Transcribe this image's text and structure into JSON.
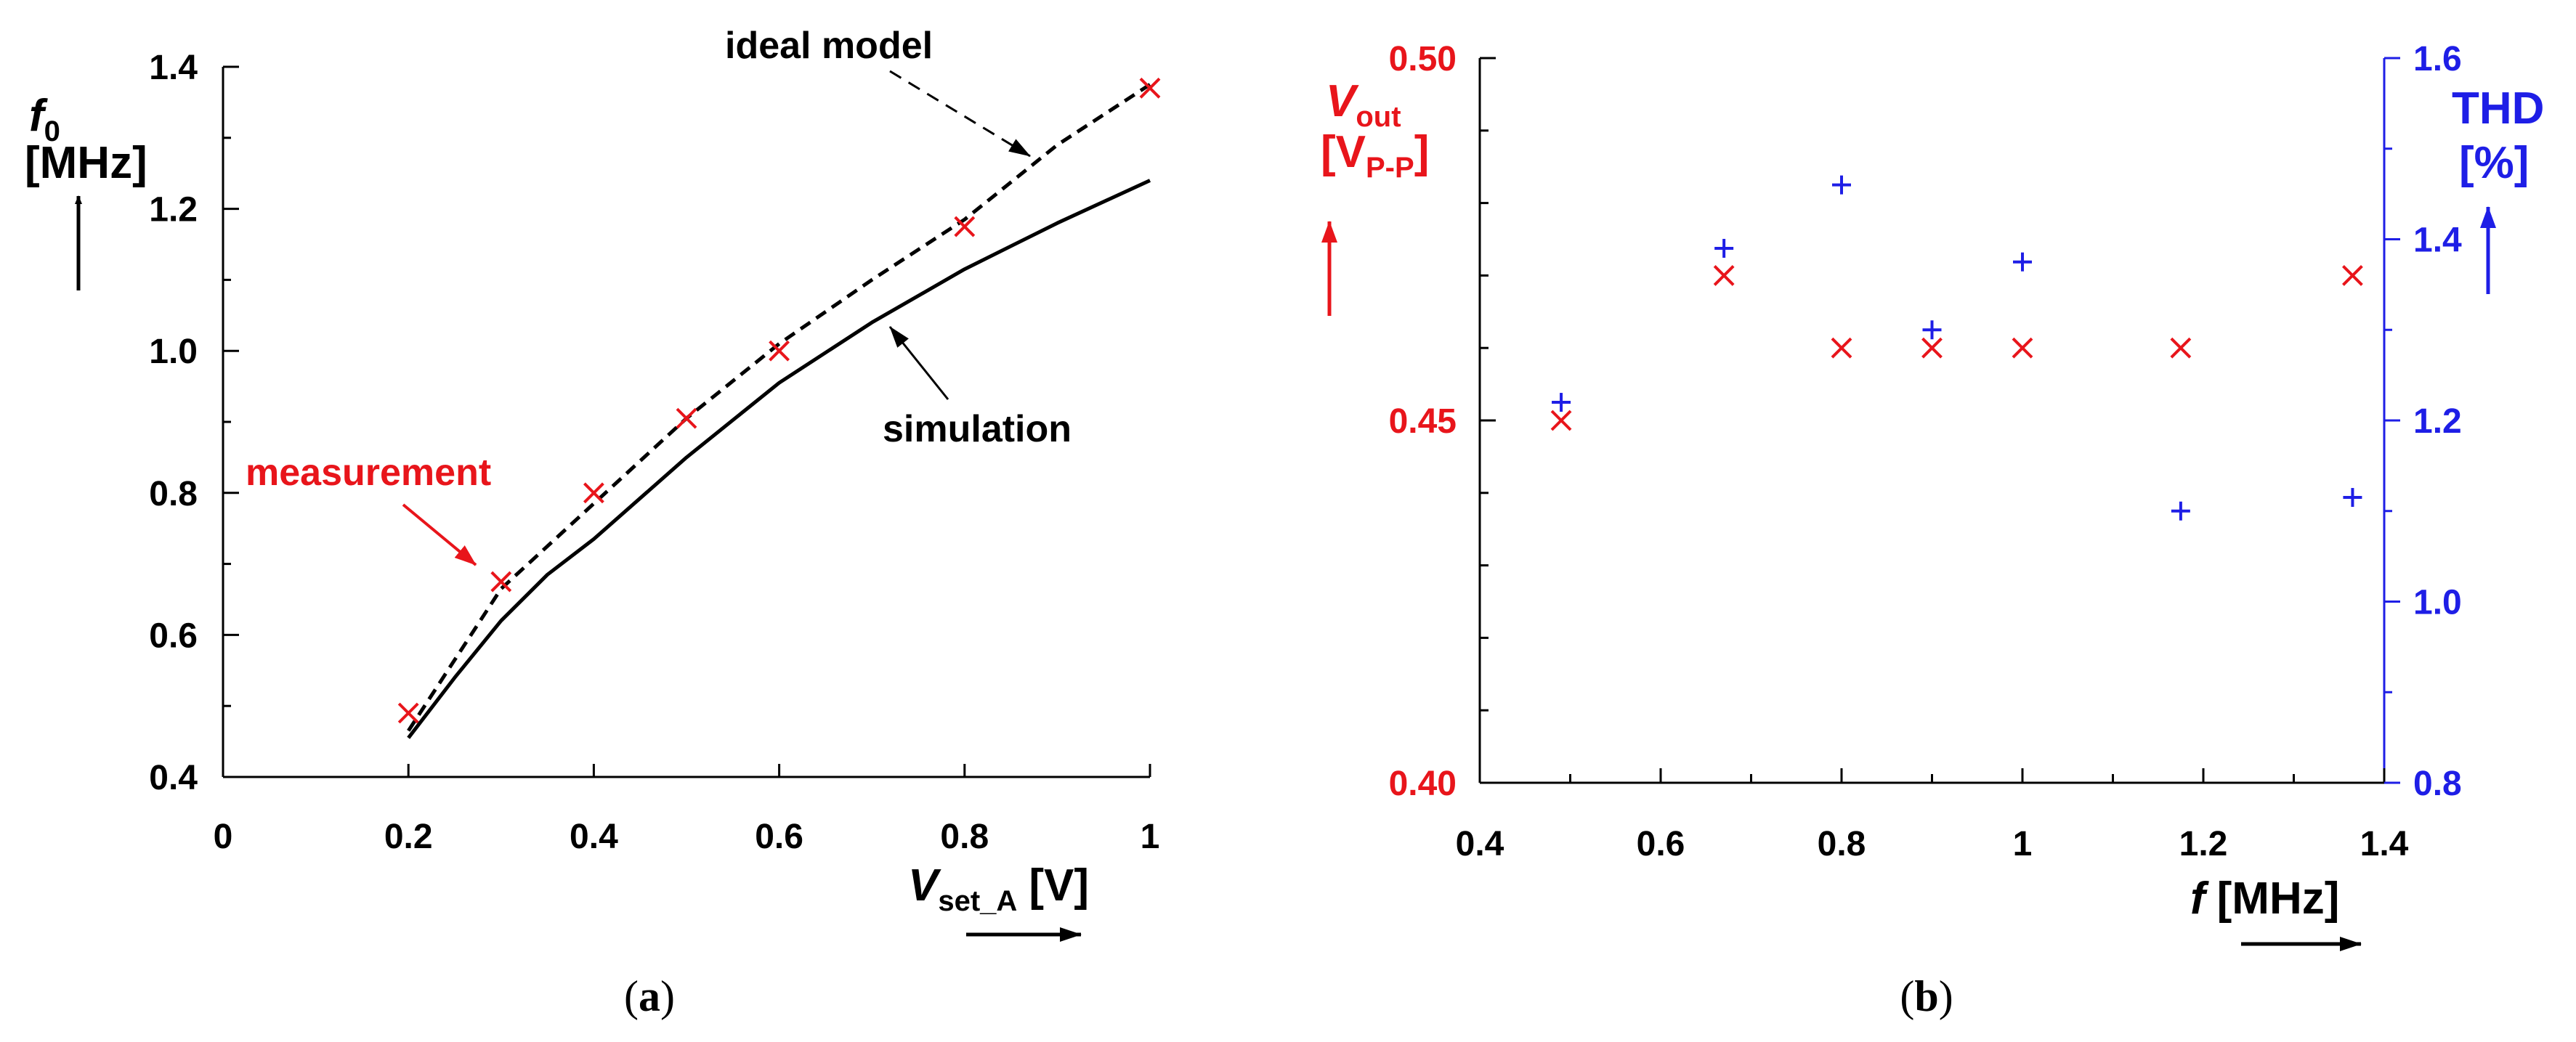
{
  "colors": {
    "black": "#000000",
    "red": "#e8151b",
    "blue": "#1e1ee6"
  },
  "icons": {
    "cross_marker": "x-mark-icon",
    "plus_marker": "plus-mark-icon",
    "axis_arrow": "arrow-icon"
  },
  "chart_data": [
    {
      "id": "a",
      "caption": {
        "open": "(",
        "letter": "a",
        "close": ")"
      },
      "type": "line",
      "title": "",
      "xlabel": {
        "main": "V",
        "sub": "set_A",
        "unit": "[V]"
      },
      "ylabel": {
        "main": "f",
        "sub": "0",
        "unit": "[MHz]"
      },
      "xlim": [
        0,
        1
      ],
      "ylim": [
        0.4,
        1.4
      ],
      "x_ticks": [
        "0",
        "0.2",
        "0.4",
        "0.6",
        "0.8",
        "1"
      ],
      "x_tick_values": [
        0,
        0.2,
        0.4,
        0.6,
        0.8,
        1
      ],
      "y_ticks": [
        "0.4",
        "0.6",
        "0.8",
        "1.0",
        "1.2",
        "1.4"
      ],
      "y_tick_values": [
        0.4,
        0.6,
        0.8,
        1.0,
        1.2,
        1.4
      ],
      "series": [
        {
          "name": "ideal model",
          "style": "dashed",
          "color": "#000000",
          "x": [
            0.2,
            0.3,
            0.4,
            0.5,
            0.6,
            0.7,
            0.8,
            0.9,
            1.0
          ],
          "y": [
            0.465,
            0.665,
            0.785,
            0.905,
            1.01,
            1.1,
            1.185,
            1.29,
            1.375
          ]
        },
        {
          "name": "simulation",
          "style": "solid",
          "color": "#000000",
          "x": [
            0.2,
            0.25,
            0.3,
            0.35,
            0.4,
            0.5,
            0.6,
            0.7,
            0.8,
            0.9,
            1.0
          ],
          "y": [
            0.455,
            0.54,
            0.62,
            0.685,
            0.735,
            0.85,
            0.955,
            1.04,
            1.115,
            1.18,
            1.24
          ]
        },
        {
          "name": "measurement",
          "style": "marker-x",
          "color": "#e8151b",
          "x": [
            0.2,
            0.3,
            0.4,
            0.5,
            0.6,
            0.8,
            1.0
          ],
          "y": [
            0.49,
            0.675,
            0.8,
            0.905,
            1.0,
            1.175,
            1.37
          ]
        }
      ],
      "annotations": [
        {
          "text": "ideal model",
          "color": "#000000"
        },
        {
          "text": "simulation",
          "color": "#000000"
        },
        {
          "text": "measurement",
          "color": "#e8151b"
        }
      ]
    },
    {
      "id": "b",
      "caption": {
        "open": "(",
        "letter": "b",
        "close": ")"
      },
      "type": "scatter",
      "title": "",
      "xlabel": {
        "main": "f",
        "unit": "[MHz]"
      },
      "ylabel_left": {
        "main": "V",
        "sub": "out",
        "unit_main": "[V",
        "unit_sub": "P-P",
        "unit_close": "]"
      },
      "ylabel_right": {
        "main": "THD",
        "unit": "[%]"
      },
      "xlim": [
        0.4,
        1.4
      ],
      "ylim_left": [
        0.4,
        0.5
      ],
      "ylim_right": [
        0.8,
        1.6
      ],
      "x_ticks": [
        "0.4",
        "0.6",
        "0.8",
        "1",
        "1.2",
        "1.4"
      ],
      "x_tick_values": [
        0.4,
        0.6,
        0.8,
        1.0,
        1.2,
        1.4
      ],
      "y_left_ticks": [
        "0.40",
        "0.45",
        "0.50"
      ],
      "y_left_tick_values": [
        0.4,
        0.45,
        0.5
      ],
      "y_right_ticks": [
        "0.8",
        "1.0",
        "1.2",
        "1.4",
        "1.6"
      ],
      "y_right_tick_values": [
        0.8,
        1.0,
        1.2,
        1.4,
        1.6
      ],
      "series": [
        {
          "name": "Vout",
          "axis": "left",
          "style": "marker-x",
          "color": "#e8151b",
          "x": [
            0.49,
            0.67,
            0.8,
            0.9,
            1.0,
            1.175,
            1.365
          ],
          "y": [
            0.45,
            0.47,
            0.46,
            0.46,
            0.46,
            0.46,
            0.47
          ]
        },
        {
          "name": "THD",
          "axis": "right",
          "style": "marker-plus",
          "color": "#1e1ee6",
          "x": [
            0.49,
            0.67,
            0.8,
            0.9,
            1.0,
            1.175,
            1.365
          ],
          "y": [
            1.22,
            1.39,
            1.46,
            1.3,
            1.375,
            1.1,
            1.115
          ]
        }
      ]
    }
  ]
}
